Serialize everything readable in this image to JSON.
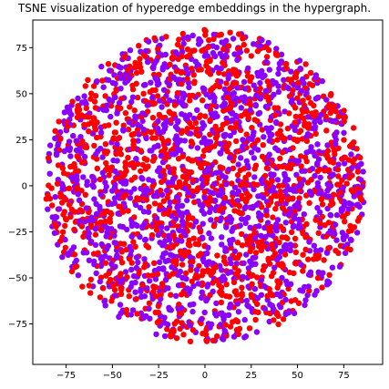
{
  "chart_data": {
    "type": "scatter",
    "title": "TSNE visualization of hyperedge embeddings in the hypergraph.",
    "xlabel": "",
    "ylabel": "",
    "xlim": [
      -93,
      96
    ],
    "ylim": [
      -97,
      90
    ],
    "x_ticks": [
      -75,
      -50,
      -25,
      0,
      25,
      50,
      75
    ],
    "y_ticks": [
      -75,
      -50,
      -25,
      0,
      25,
      50,
      75
    ],
    "x_tick_labels": [
      "−75",
      "−50",
      "−25",
      "0",
      "25",
      "50",
      "75"
    ],
    "y_tick_labels": [
      "−75",
      "−50",
      "−25",
      "0",
      "25",
      "50",
      "75"
    ],
    "grid": false,
    "legend": "none",
    "point_cloud": {
      "shape": "roughly circular",
      "center": [
        0,
        0
      ],
      "radius": 85,
      "approx_points_per_series": 1400
    },
    "series": [
      {
        "color": "#8a00ff"
      },
      {
        "color": "#ff0000"
      }
    ]
  }
}
